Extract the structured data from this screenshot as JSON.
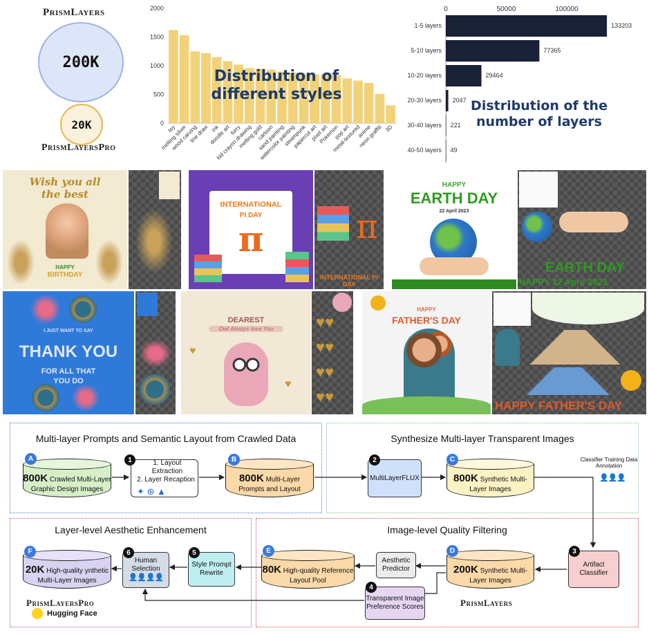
{
  "header": {
    "brand_top": "PrismLayers",
    "circle_big": "200K",
    "circle_small": "20K",
    "brand_bottom": "PrismLayersPro"
  },
  "chart_data": [
    {
      "type": "bar",
      "title": "Distribution of different styles",
      "categories": [
        "toy",
        "melting silver",
        "wood carving",
        "line draw",
        "ink",
        "doodle art",
        "furry",
        "kid crayon drawing",
        "melting gold",
        "cartoon",
        "sand painting",
        "watercolor painting",
        "steampunk",
        "papercut art",
        "pixel art",
        "Pokemon",
        "pop art",
        "metal-textured",
        "anime",
        "neon graffiti",
        "3D"
      ],
      "values": [
        1620,
        1530,
        1250,
        1220,
        1150,
        1080,
        1020,
        960,
        950,
        930,
        900,
        880,
        860,
        850,
        850,
        840,
        780,
        740,
        700,
        510,
        310
      ],
      "ylim": [
        0,
        2000
      ],
      "yticks": [
        "0",
        "500",
        "1000",
        "1500",
        "2000"
      ],
      "color": "#f1d27a"
    },
    {
      "type": "bar",
      "orientation": "horizontal",
      "title": "Distribution of the number of  layers",
      "categories": [
        "1-5 layers",
        "5-10 layers",
        "10-20 layers",
        "20-30 layers",
        "30-40 layers",
        "40-50 layers"
      ],
      "values": [
        133203,
        77365,
        29464,
        2047,
        221,
        49
      ],
      "value_labels": [
        "133203",
        "77365",
        "29464",
        "2047",
        "221",
        "49"
      ],
      "xlim": [
        0,
        140000
      ],
      "xticks": [
        "0",
        "50000",
        "100000"
      ],
      "color": "#1a2238"
    }
  ],
  "gallery": {
    "card1": {
      "line1": "Wish you all",
      "line2": "the best",
      "line3": "HAPPY",
      "line4": "BIRTHDAY"
    },
    "card2": {
      "line1": "INTERNATIONAL",
      "line2": "PI DAY",
      "symbol": "π",
      "strip": "INTERNATIONAL PI DAY"
    },
    "card3": {
      "line1": "HAPPY",
      "line2": "EARTH DAY",
      "line3": "22 April 2023",
      "strip1": "EARTH DAY",
      "strip2": "HAPPY 22 April 2023"
    },
    "card4": {
      "line1": "I JUST WANT TO SAY",
      "line2": "THANK YOU",
      "line3": "FOR ALL THAT",
      "line4": "YOU DO"
    },
    "card5": {
      "line1": "DEAREST",
      "line2": "Owl Always love You"
    },
    "card6": {
      "line1": "HAPPY",
      "line2": "FATHER'S DAY",
      "strip": "HAPPY FATHER'S DAY"
    }
  },
  "pipeline": {
    "sec1_title": "Multi-layer Prompts and Semantic Layout from Crawled Data",
    "sec2_title": "Synthesize Multi-layer Transparent Images",
    "sec3_title": "Layer-level Aesthetic Enhancement",
    "sec4_title": "Image-level Quality Filtering",
    "A": {
      "letter": "A",
      "num": "800K",
      "text": "Crawled Multi-Layer Graphic Design Images"
    },
    "step1": {
      "num": "1",
      "line1": "1. Layout Extraction",
      "line2": "2. Layer Recaption"
    },
    "B": {
      "letter": "B",
      "num": "800K",
      "text": "Multi-Layer Prompts and Layout"
    },
    "step2": {
      "num": "2",
      "label": "MultiLayerFLUX"
    },
    "C": {
      "letter": "C",
      "num": "800K",
      "text": "Synthetic Multi-Layer Images"
    },
    "annotation": "Classifier Training Data Annotation",
    "step3": {
      "num": "3",
      "label": "Artifact Classifier"
    },
    "D": {
      "letter": "D",
      "num": "200K",
      "text": "Synthetic Multi-Layer Images",
      "caption": "PrismLayers"
    },
    "aesthetic": "Aesthetic Predictor",
    "step4": {
      "num": "4",
      "label": "Transparent Image Preference Scores"
    },
    "E": {
      "letter": "E",
      "num": "80K",
      "text": "High-quality Reference Layout Pool"
    },
    "step5": {
      "num": "5",
      "label": "Style Prompt Rewrite"
    },
    "step6": {
      "num": "6",
      "label": "Human Selection"
    },
    "F": {
      "letter": "F",
      "num": "20K",
      "text": "High-quality ynthetic Multi-Layer Images",
      "caption": "PrismLayersPro",
      "hf": "Hugging Face"
    }
  }
}
